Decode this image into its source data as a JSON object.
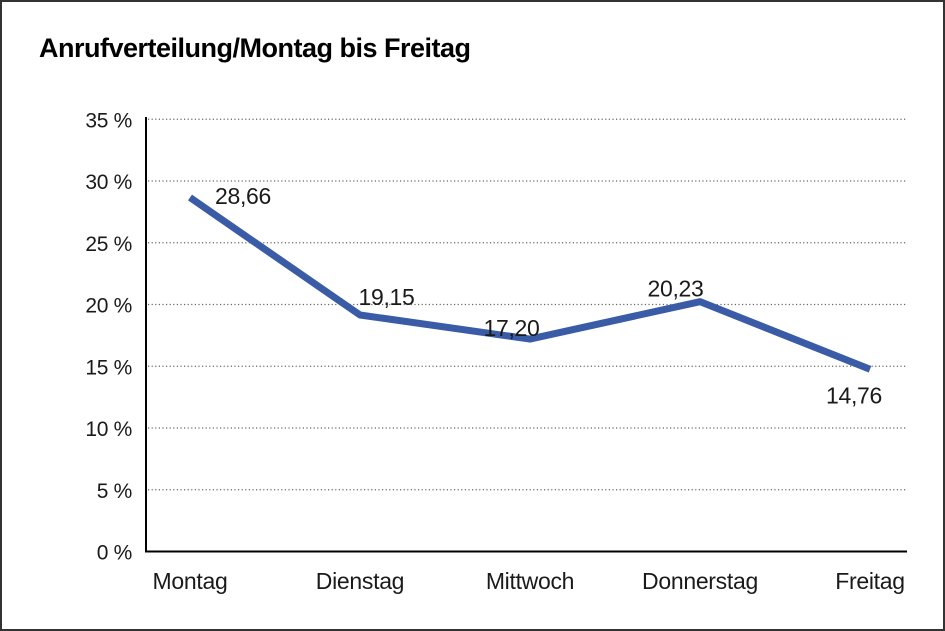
{
  "frame": {
    "background": "#ffffff",
    "border_color": "#333333"
  },
  "chart_data": {
    "type": "line",
    "title": "Anrufverteilung/Montag bis Freitag",
    "categories": [
      "Montag",
      "Dienstag",
      "Mittwoch",
      "Donnerstag",
      "Freitag"
    ],
    "series": [
      {
        "values": [
          28.66,
          19.15,
          17.2,
          20.23,
          14.76
        ],
        "data_labels": [
          "28,66",
          "19,15",
          "17,20",
          "20,23",
          "14,76"
        ],
        "color": "#3a5ba6"
      }
    ],
    "y_axis": {
      "min": 0,
      "max": 35,
      "step": 5,
      "tick_labels": [
        "0 %",
        "5 %",
        "10 %",
        "15 %",
        "20 %",
        "25 %",
        "30 %",
        "35 %"
      ]
    },
    "x_axis_label": "",
    "y_axis_label": "",
    "grid": {
      "horizontal": true,
      "style": "dotted",
      "color": "#666666"
    },
    "axis_color": "#000000",
    "text_color": "#1a1a1a",
    "legend": "none"
  }
}
